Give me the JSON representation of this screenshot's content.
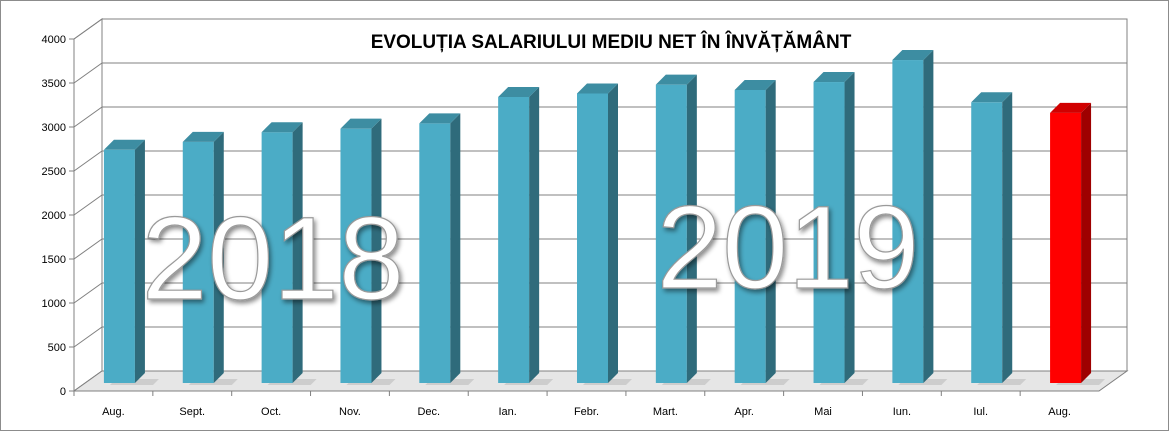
{
  "chart_data": {
    "type": "bar",
    "title": "EVOLUȚIA SALARIULUI MEDIU NET ÎN ÎNVĂȚĂMÂNT",
    "categories": [
      "Aug.",
      "Sept.",
      "Oct.",
      "Nov.",
      "Dec.",
      "Ian.",
      "Febr.",
      "Mart.",
      "Apr.",
      "Mai",
      "Iun.",
      "Iul.",
      "Aug."
    ],
    "values": [
      2650,
      2740,
      2850,
      2890,
      2950,
      3250,
      3290,
      3390,
      3330,
      3420,
      3670,
      3190,
      3070
    ],
    "ylim": [
      0,
      4000
    ],
    "yticks": [
      "0",
      "500",
      "1000",
      "1500",
      "2000",
      "2500",
      "3000",
      "3500",
      "4000"
    ],
    "xlabel": "",
    "ylabel": "",
    "grid": true,
    "three_d": true,
    "colors": {
      "bar": "#4bacc6",
      "bar_highlight": "#ff0000",
      "grid": "#808080",
      "wall": "#ffffff"
    },
    "highlighted_index": 12,
    "annotations": [
      "2018",
      "2019"
    ]
  }
}
